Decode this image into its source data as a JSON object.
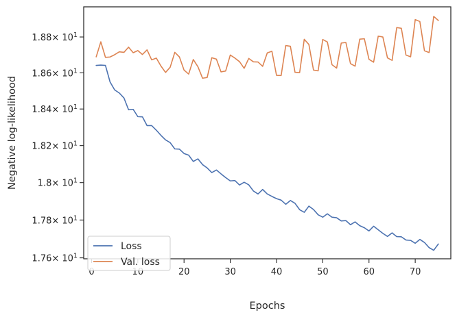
{
  "chart_data": {
    "type": "line",
    "title": "",
    "xlabel": "Epochs",
    "ylabel": "Negative log-likelihood",
    "xlim": [
      -1.7,
      77.7
    ],
    "ylim": [
      17.595,
      18.97
    ],
    "y_scale": "log",
    "x_ticks": [
      0,
      10,
      20,
      30,
      40,
      50,
      60,
      70
    ],
    "y_ticks": [
      {
        "value": 17.6,
        "mantissa": "1.76",
        "exp": "1"
      },
      {
        "value": 17.8,
        "mantissa": "1.78",
        "exp": "1"
      },
      {
        "value": 18.0,
        "mantissa": "1.8",
        "exp": "1"
      },
      {
        "value": 18.2,
        "mantissa": "1.82",
        "exp": "1"
      },
      {
        "value": 18.4,
        "mantissa": "1.84",
        "exp": "1"
      },
      {
        "value": 18.6,
        "mantissa": "1.86",
        "exp": "1"
      },
      {
        "value": 18.8,
        "mantissa": "1.88",
        "exp": "1"
      }
    ],
    "tick_base": "× 10",
    "legend_position": "lower-left",
    "grid": false,
    "x": [
      1,
      2,
      3,
      4,
      5,
      6,
      7,
      8,
      9,
      10,
      11,
      12,
      13,
      14,
      15,
      16,
      17,
      18,
      19,
      20,
      21,
      22,
      23,
      24,
      25,
      26,
      27,
      28,
      29,
      30,
      31,
      32,
      33,
      34,
      35,
      36,
      37,
      38,
      39,
      40,
      41,
      42,
      43,
      44,
      45,
      46,
      47,
      48,
      49,
      50,
      51,
      52,
      53,
      54,
      55,
      56,
      57,
      58,
      59,
      60,
      61,
      62,
      63,
      64,
      65,
      66,
      67,
      68,
      69,
      70,
      71,
      72,
      73,
      74,
      75
    ],
    "series": [
      {
        "name": "Loss",
        "color": "#4c72b0",
        "values": [
          18.641,
          18.643,
          18.641,
          18.549,
          18.505,
          18.488,
          18.461,
          18.396,
          18.398,
          18.358,
          18.357,
          18.309,
          18.309,
          18.284,
          18.256,
          18.231,
          18.216,
          18.182,
          18.181,
          18.157,
          18.148,
          18.114,
          18.128,
          18.097,
          18.079,
          18.054,
          18.068,
          18.047,
          18.027,
          18.009,
          18.011,
          17.987,
          18.002,
          17.988,
          17.955,
          17.939,
          17.963,
          17.939,
          17.926,
          17.914,
          17.906,
          17.884,
          17.904,
          17.889,
          17.855,
          17.841,
          17.874,
          17.856,
          17.828,
          17.815,
          17.833,
          17.815,
          17.812,
          17.795,
          17.797,
          17.775,
          17.79,
          17.77,
          17.759,
          17.742,
          17.767,
          17.748,
          17.729,
          17.713,
          17.732,
          17.712,
          17.711,
          17.694,
          17.692,
          17.677,
          17.697,
          17.681,
          17.654,
          17.64,
          17.673
        ]
      },
      {
        "name": "Val. loss",
        "color": "#dd8452",
        "values": [
          18.689,
          18.773,
          18.686,
          18.688,
          18.701,
          18.717,
          18.714,
          18.743,
          18.712,
          18.724,
          18.702,
          18.728,
          18.672,
          18.682,
          18.638,
          18.602,
          18.631,
          18.714,
          18.688,
          18.615,
          18.593,
          18.674,
          18.634,
          18.57,
          18.574,
          18.684,
          18.676,
          18.605,
          18.61,
          18.699,
          18.682,
          18.662,
          18.625,
          18.68,
          18.661,
          18.66,
          18.636,
          18.711,
          18.72,
          18.586,
          18.585,
          18.752,
          18.748,
          18.603,
          18.601,
          18.787,
          18.758,
          18.615,
          18.611,
          18.786,
          18.772,
          18.645,
          18.626,
          18.766,
          18.769,
          18.651,
          18.637,
          18.788,
          18.79,
          18.675,
          18.659,
          18.805,
          18.8,
          18.683,
          18.669,
          18.853,
          18.849,
          18.699,
          18.689,
          18.898,
          18.887,
          18.723,
          18.713,
          18.916,
          18.893
        ]
      }
    ]
  }
}
